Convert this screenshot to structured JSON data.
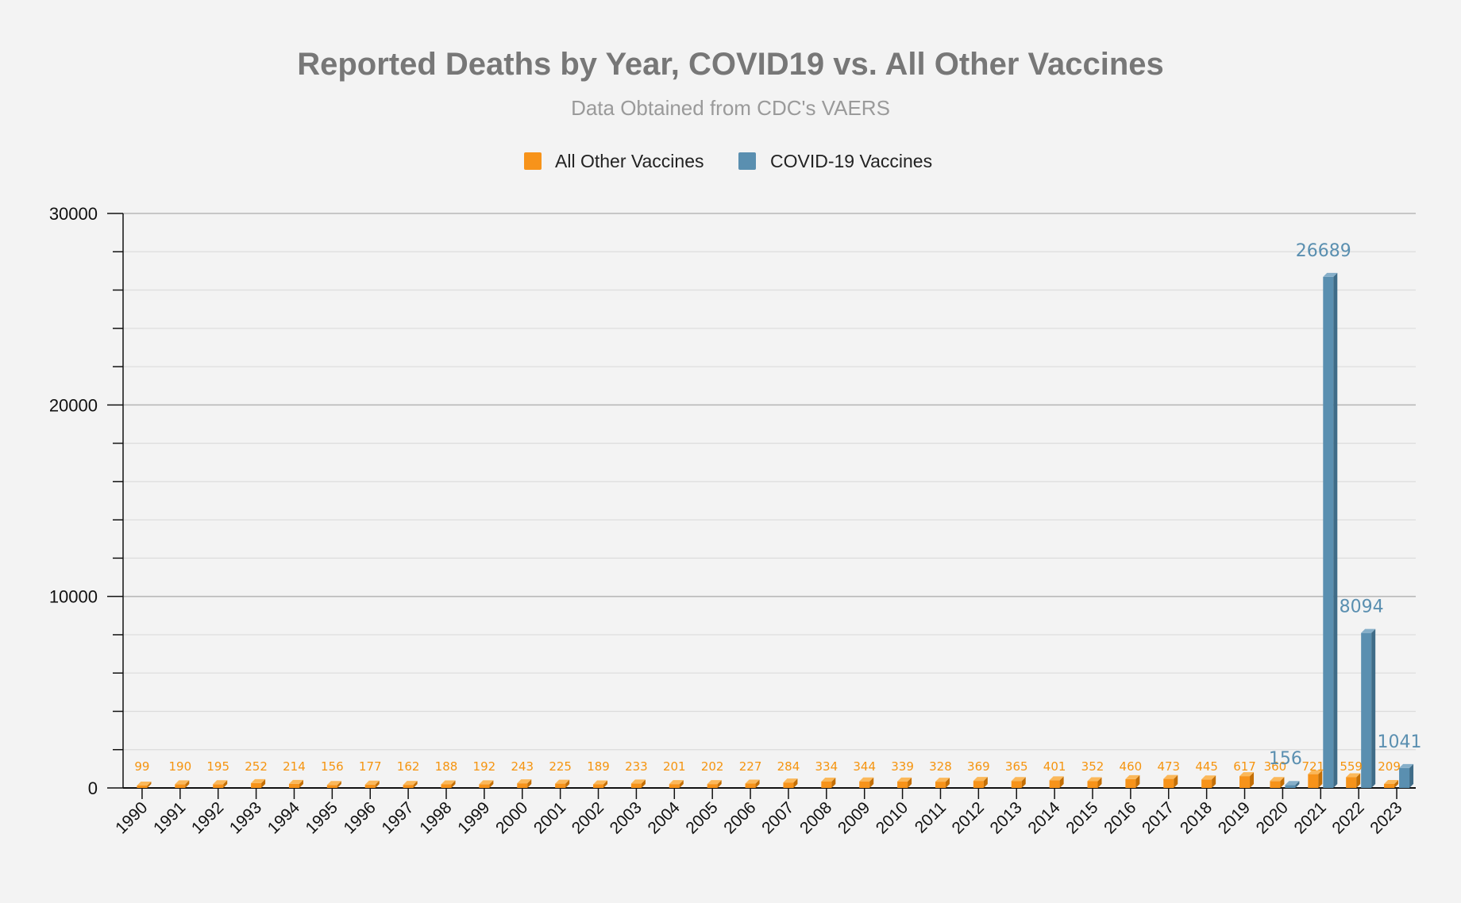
{
  "colors": {
    "other": "#f7931a",
    "other_dark": "#c46f05",
    "other_top": "#fbb85a",
    "covid": "#5a8fb0",
    "covid_dark": "#3f6c88",
    "covid_top": "#86afc9",
    "background": "#f3f3f3"
  },
  "chart_data": {
    "type": "bar",
    "title": "Reported Deaths by Year, COVID19 vs. All Other Vaccines",
    "subtitle": "Data Obtained from CDC's VAERS",
    "xlabel": "",
    "ylabel": "",
    "ylim": [
      0,
      30000
    ],
    "yticks": [
      "0",
      "10000",
      "20000",
      "30000"
    ],
    "legend_position": "top-center",
    "categories": [
      "1990",
      "1991",
      "1992",
      "1993",
      "1994",
      "1995",
      "1996",
      "1997",
      "1998",
      "1999",
      "2000",
      "2001",
      "2002",
      "2003",
      "2004",
      "2005",
      "2006",
      "2007",
      "2008",
      "2009",
      "2010",
      "2011",
      "2012",
      "2013",
      "2014",
      "2015",
      "2016",
      "2017",
      "2018",
      "2019",
      "2020",
      "2021",
      "2022",
      "2023"
    ],
    "series": [
      {
        "name": "All Other Vaccines",
        "values": [
          99,
          190,
          195,
          252,
          214,
          156,
          177,
          162,
          188,
          192,
          243,
          225,
          189,
          233,
          201,
          202,
          227,
          284,
          334,
          344,
          339,
          328,
          369,
          365,
          401,
          352,
          460,
          473,
          445,
          617,
          360,
          721,
          559,
          209
        ]
      },
      {
        "name": "COVID-19 Vaccines",
        "values": [
          null,
          null,
          null,
          null,
          null,
          null,
          null,
          null,
          null,
          null,
          null,
          null,
          null,
          null,
          null,
          null,
          null,
          null,
          null,
          null,
          null,
          null,
          null,
          null,
          null,
          null,
          null,
          null,
          null,
          null,
          156,
          26689,
          8094,
          1041
        ]
      }
    ]
  }
}
